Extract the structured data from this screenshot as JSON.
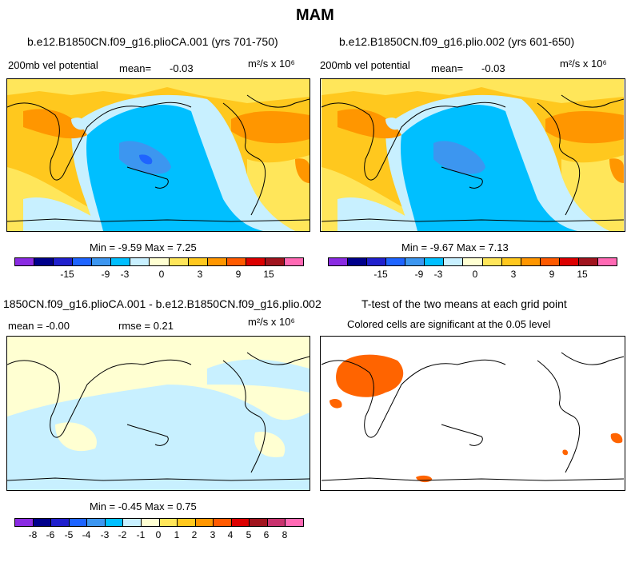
{
  "figure": {
    "title": "MAM"
  },
  "panels": [
    {
      "title": "b.e12.B1850CN.f09_g16.plioCA.001 (yrs 701-750)",
      "left_label": "200mb vel potential",
      "mean_label": "mean=",
      "mean_value": "-0.03",
      "units_label": "m²/s x 10⁶",
      "stats": "Min =   -9.59 Max =     7.25"
    },
    {
      "title": "b.e12.B1850CN.f09_g16.plio.002 (yrs 601-650)",
      "left_label": "200mb vel potential",
      "mean_label": "mean=",
      "mean_value": "-0.03",
      "units_label": "m²/s x 10⁶",
      "stats": "Min =   -9.67 Max =     7.13"
    },
    {
      "title": "1850CN.f09_g16.plioCA.001 - b.e12.B1850CN.f09_g16.plio.002",
      "left_label": "mean =  -0.00",
      "rmse_label": "rmse =     0.21",
      "units_label": "m²/s x 10⁶",
      "stats": "Min =  -0.45 Max =     0.75"
    },
    {
      "title": "T-test of the two means at each grid point",
      "left_label": "Colored cells are significant at the 0.05 level"
    }
  ],
  "colorbars": {
    "colors": [
      "#8a2be2",
      "#00008b",
      "#2020cd",
      "#1e64ff",
      "#3c96f0",
      "#00bfff",
      "#c8f0ff",
      "#ffffd2",
      "#ffe65a",
      "#ffc81e",
      "#ff9600",
      "#ff5a00",
      "#dc0000",
      "#a0141e",
      "#c8326e",
      "#ff69b4"
    ],
    "main_ticks": [
      "-15",
      "-9",
      "-3",
      "0",
      "3",
      "9",
      "15"
    ],
    "diff_ticks": [
      "-8",
      "-6",
      "-5",
      "-4",
      "-3",
      "-2",
      "-1",
      "0",
      "1",
      "2",
      "3",
      "4",
      "5",
      "6",
      "8"
    ]
  },
  "chart_data": [
    {
      "type": "heatmap",
      "title": "b.e12.B1850CN.f09_g16.plioCA.001 (yrs 701-750)",
      "variable": "200mb vel potential",
      "units": "m²/s x 10⁶",
      "mean": -0.03,
      "min": -9.59,
      "max": 7.25,
      "levels": [
        -15,
        -9,
        -3,
        0,
        3,
        9,
        15
      ]
    },
    {
      "type": "heatmap",
      "title": "b.e12.B1850CN.f09_g16.plio.002 (yrs 601-650)",
      "variable": "200mb vel potential",
      "units": "m²/s x 10⁶",
      "mean": -0.03,
      "min": -9.67,
      "max": 7.13,
      "levels": [
        -15,
        -9,
        -3,
        0,
        3,
        9,
        15
      ]
    },
    {
      "type": "heatmap",
      "title": "1850CN.f09_g16.plioCA.001 - b.e12.B1850CN.f09_g16.plio.002",
      "units": "m²/s x 10⁶",
      "mean": -0.0,
      "rmse": 0.21,
      "min": -0.45,
      "max": 0.75,
      "levels": [
        -8,
        -6,
        -5,
        -4,
        -3,
        -2,
        -1,
        0,
        1,
        2,
        3,
        4,
        5,
        6,
        8
      ]
    },
    {
      "type": "heatmap",
      "title": "T-test of the two means at each grid point",
      "note": "Colored cells are significant at the 0.05 level",
      "significance_level": 0.05
    }
  ]
}
